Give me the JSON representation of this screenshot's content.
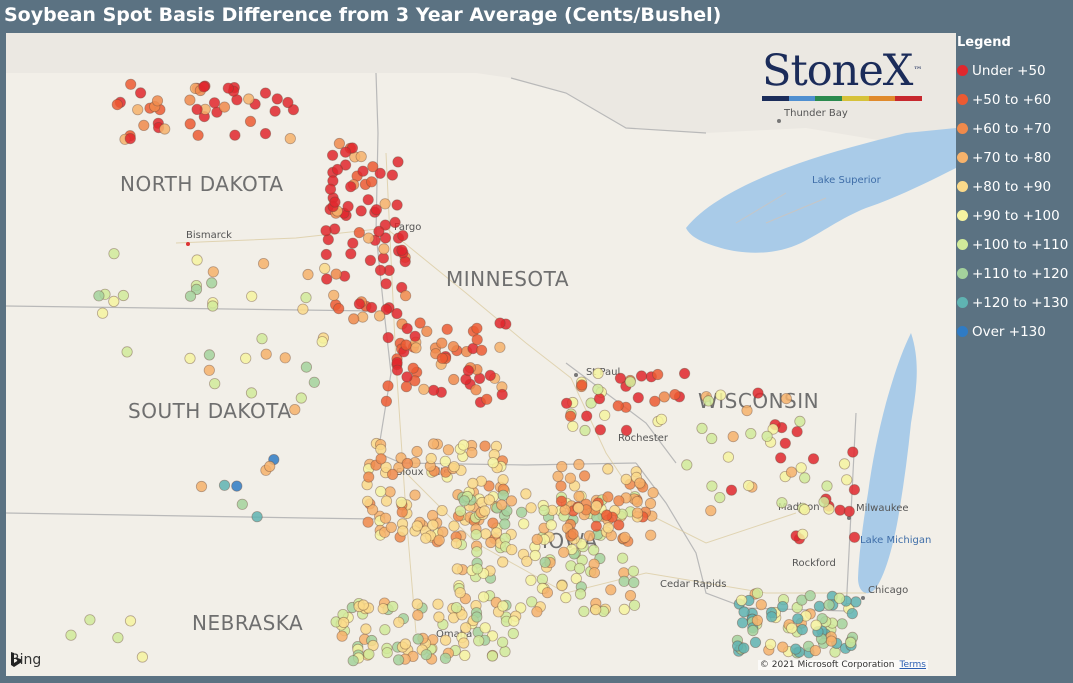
{
  "title": "Soybean Spot Basis Difference from 3 Year Average (Cents/Bushel)",
  "legend": {
    "title": "Legend",
    "items": [
      {
        "label": "Under +50",
        "color": "#e0272d"
      },
      {
        "label": "+50 to +60",
        "color": "#ec5a32"
      },
      {
        "label": "+60 to +70",
        "color": "#f08a4b"
      },
      {
        "label": "+70 to +80",
        "color": "#f6b26b"
      },
      {
        "label": "+80 to +90",
        "color": "#fad98a"
      },
      {
        "label": "+90 to +100",
        "color": "#f6f3a0"
      },
      {
        "label": "+100 to +110",
        "color": "#d1ea9a"
      },
      {
        "label": "+110 to +120",
        "color": "#a4d29c"
      },
      {
        "label": "+120 to +130",
        "color": "#5fb3b2"
      },
      {
        "label": "Over +130",
        "color": "#2f7bc4"
      }
    ]
  },
  "map": {
    "states": {
      "north_dakota": "NORTH DAKOTA",
      "minnesota": "MINNESOTA",
      "south_dakota": "SOUTH DAKOTA",
      "wisconsin": "WISCONSIN",
      "iowa": "IOWA",
      "nebraska": "NEBRASKA"
    },
    "cities": {
      "bismarck": "Bismarck",
      "fargo": "Fargo",
      "st_paul": "St Paul",
      "rochester": "Rochester",
      "sioux_falls": "Sioux Falls",
      "madison": "Madison",
      "milwaukee": "Milwaukee",
      "rockford": "Rockford",
      "chicago": "Chicago",
      "cedar_rapids": "Cedar Rapids",
      "omaha": "Omaha",
      "thunder_bay": "Thunder Bay"
    },
    "water": {
      "lake_superior": "Lake Superior",
      "lake_michigan": "Lake Michigan"
    }
  },
  "logo": {
    "text": "StoneX",
    "tm": "™",
    "bar_colors": [
      "#1b2c5a",
      "#4f8fd0",
      "#2b8a4e",
      "#d6c23a",
      "#e08a2c",
      "#c7282e"
    ]
  },
  "attribution": {
    "bing": "Bing",
    "copyright": "© 2021 Microsoft Corporation",
    "terms": "Terms"
  }
}
